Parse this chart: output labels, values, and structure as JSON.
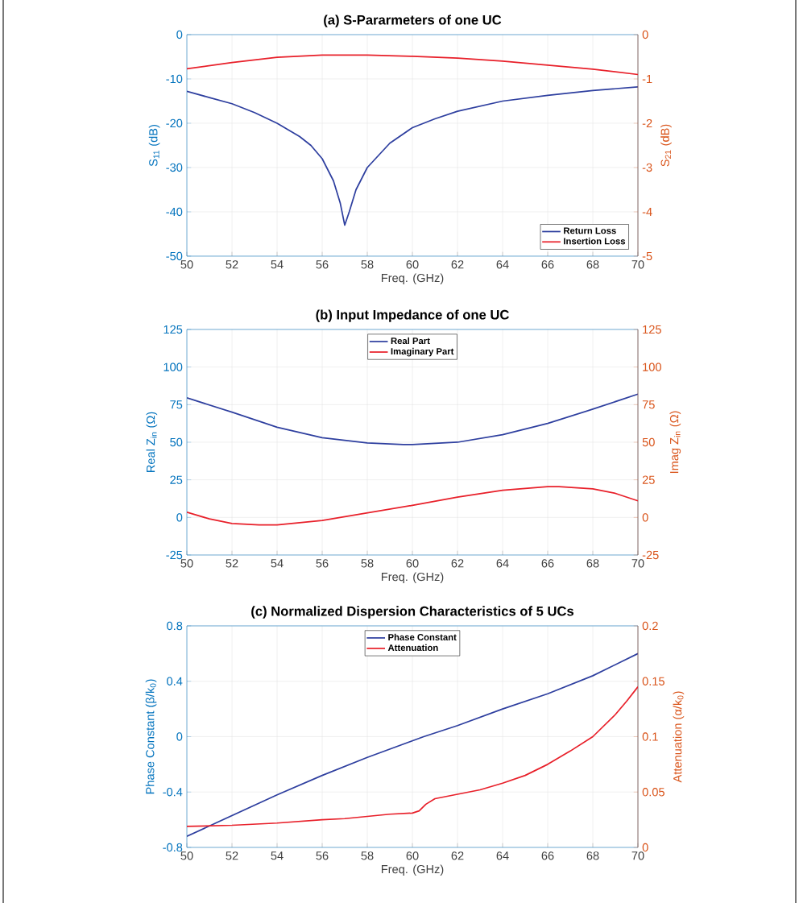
{
  "chart_data": [
    {
      "type": "line",
      "title": "(a) S-Pararmeters of one UC",
      "xlabel": "Freq. (GHz)",
      "ylabel": "S$_{11}$ (dB)",
      "y2label": "S$_{21}$ (dB)",
      "xlim": [
        50,
        70
      ],
      "xticks": [
        50,
        52,
        54,
        56,
        58,
        60,
        62,
        64,
        66,
        68,
        70
      ],
      "ylim": [
        -50,
        0
      ],
      "yticks": [
        -50,
        -40,
        -30,
        -20,
        -10,
        0
      ],
      "y2lim": [
        -5,
        0
      ],
      "y2ticks": [
        -5,
        -4,
        -3,
        -2,
        -1,
        0
      ],
      "grid": true,
      "legend": "bottom right",
      "line_style": "solid",
      "series": [
        {
          "name": "Return Loss",
          "color": "#2e3f9f",
          "x": [
            50,
            51,
            52,
            53,
            54,
            55,
            55.5,
            56,
            56.5,
            56.8,
            57,
            57.2,
            57.5,
            58,
            59,
            60,
            61,
            62,
            64,
            66,
            68,
            70
          ],
          "values": [
            -12.8,
            -14.2,
            -15.6,
            -17.6,
            -20,
            -23,
            -25,
            -28,
            -33,
            -38,
            -43,
            -40,
            -35,
            -30,
            -24.5,
            -21,
            -19,
            -17.3,
            -15,
            -13.7,
            -12.6,
            -11.8
          ]
        },
        {
          "name": "Insertion Loss",
          "color": "#e8202a",
          "axis": "y2",
          "x": [
            50,
            52,
            54,
            56,
            58,
            60,
            62,
            64,
            66,
            68,
            70
          ],
          "values": [
            -0.77,
            -0.63,
            -0.51,
            -0.46,
            -0.46,
            -0.49,
            -0.53,
            -0.6,
            -0.69,
            -0.78,
            -0.9
          ]
        }
      ]
    },
    {
      "type": "line",
      "title": "(b) Input Impedance of one UC",
      "xlabel": "Freq. (GHz)",
      "ylabel": "Real Z$_{in}$ (Ω)",
      "y2label": "Imag Z$_{in}$ (Ω)",
      "xlim": [
        50,
        70
      ],
      "xticks": [
        50,
        52,
        54,
        56,
        58,
        60,
        62,
        64,
        66,
        68,
        70
      ],
      "ylim": [
        -25,
        125
      ],
      "yticks": [
        -25,
        0,
        25,
        50,
        75,
        100,
        125
      ],
      "y2lim": [
        -25,
        125
      ],
      "y2ticks": [
        -25,
        0,
        25,
        50,
        75,
        100,
        125
      ],
      "grid": true,
      "legend": "top",
      "line_style": "solid",
      "series": [
        {
          "name": "Real Part",
          "color": "#2e3f9f",
          "x": [
            50,
            52,
            54,
            56,
            58,
            59.6,
            60,
            62,
            64,
            66,
            68,
            70
          ],
          "values": [
            79.5,
            70,
            60,
            53,
            49.5,
            48.5,
            48.5,
            50,
            55,
            62.5,
            72,
            82
          ]
        },
        {
          "name": "Imaginary Part",
          "color": "#e8202a",
          "axis": "y2",
          "x": [
            50,
            51,
            52,
            53.2,
            54,
            56,
            58,
            60,
            62,
            64,
            66,
            66.5,
            68,
            69,
            70
          ],
          "values": [
            3.5,
            -1,
            -4,
            -5,
            -5,
            -2,
            3,
            8,
            13.5,
            18,
            20.5,
            20.5,
            19,
            16,
            11
          ]
        }
      ]
    },
    {
      "type": "line",
      "title": "(c) Normalized Dispersion Characteristics of 5 UCs",
      "xlabel": "Freq. (GHz)",
      "ylabel": "Phase Constant (β/k$_{0}$)",
      "y2label": "Attenuation (α/k$_{0}$)",
      "xlim": [
        50,
        70
      ],
      "xticks": [
        50,
        52,
        54,
        56,
        58,
        60,
        62,
        64,
        66,
        68,
        70
      ],
      "ylim": [
        -0.8,
        0.8
      ],
      "yticks": [
        -0.8,
        -0.4,
        0,
        0.4,
        0.8
      ],
      "y2lim": [
        0,
        0.2
      ],
      "y2ticks": [
        0,
        0.05,
        0.1,
        0.15,
        0.2
      ],
      "grid": true,
      "legend": "top",
      "line_style": "solid",
      "series": [
        {
          "name": "Phase Constant",
          "color": "#2e3f9f",
          "x": [
            50,
            52,
            54,
            56,
            58,
            60,
            60.5,
            62,
            64,
            66,
            68,
            70
          ],
          "values": [
            -0.72,
            -0.57,
            -0.42,
            -0.28,
            -0.15,
            -0.03,
            0.0,
            0.08,
            0.2,
            0.31,
            0.44,
            0.6
          ]
        },
        {
          "name": "Attenuation",
          "color": "#e8202a",
          "axis": "y2",
          "x": [
            50,
            52,
            54,
            56,
            57,
            58,
            59,
            60,
            60.3,
            60.6,
            61,
            62,
            63,
            64,
            65,
            66,
            67,
            68,
            69,
            69.5,
            70
          ],
          "values": [
            0.019,
            0.02,
            0.022,
            0.025,
            0.026,
            0.028,
            0.03,
            0.031,
            0.033,
            0.039,
            0.044,
            0.048,
            0.052,
            0.058,
            0.065,
            0.075,
            0.087,
            0.1,
            0.12,
            0.132,
            0.145
          ]
        }
      ]
    }
  ]
}
